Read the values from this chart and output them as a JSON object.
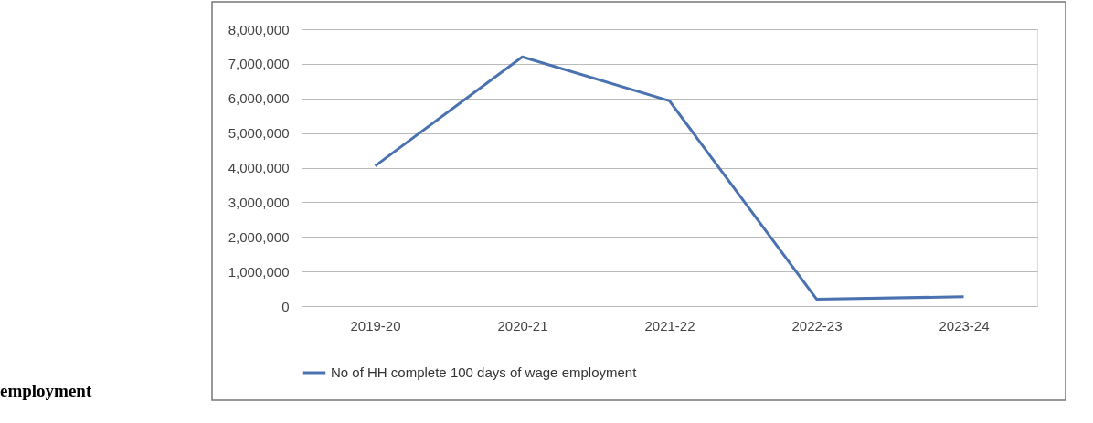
{
  "chart_data": {
    "type": "line",
    "categories": [
      "2019-20",
      "2020-21",
      "2021-22",
      "2022-23",
      "2023-24"
    ],
    "series": [
      {
        "name": "No of HH complete 100 days of wage employment",
        "color": "#4a72b0",
        "values": [
          4050000,
          7200000,
          5930000,
          200000,
          270000
        ]
      }
    ],
    "ylim": [
      0,
      8000000
    ],
    "yticks": [
      {
        "value": 0,
        "label": "0"
      },
      {
        "value": 1000000,
        "label": "1,000,000"
      },
      {
        "value": 2000000,
        "label": "2,000,000"
      },
      {
        "value": 3000000,
        "label": "3,000,000"
      },
      {
        "value": 4000000,
        "label": "4,000,000"
      },
      {
        "value": 5000000,
        "label": "5,000,000"
      },
      {
        "value": 6000000,
        "label": "6,000,000"
      },
      {
        "value": 7000000,
        "label": "7,000,000"
      },
      {
        "value": 8000000,
        "label": "8,000,000"
      }
    ],
    "grid": "y",
    "legend": "bottom",
    "marker": "none",
    "line_style": "solid",
    "annotations": [
      "employment"
    ]
  }
}
